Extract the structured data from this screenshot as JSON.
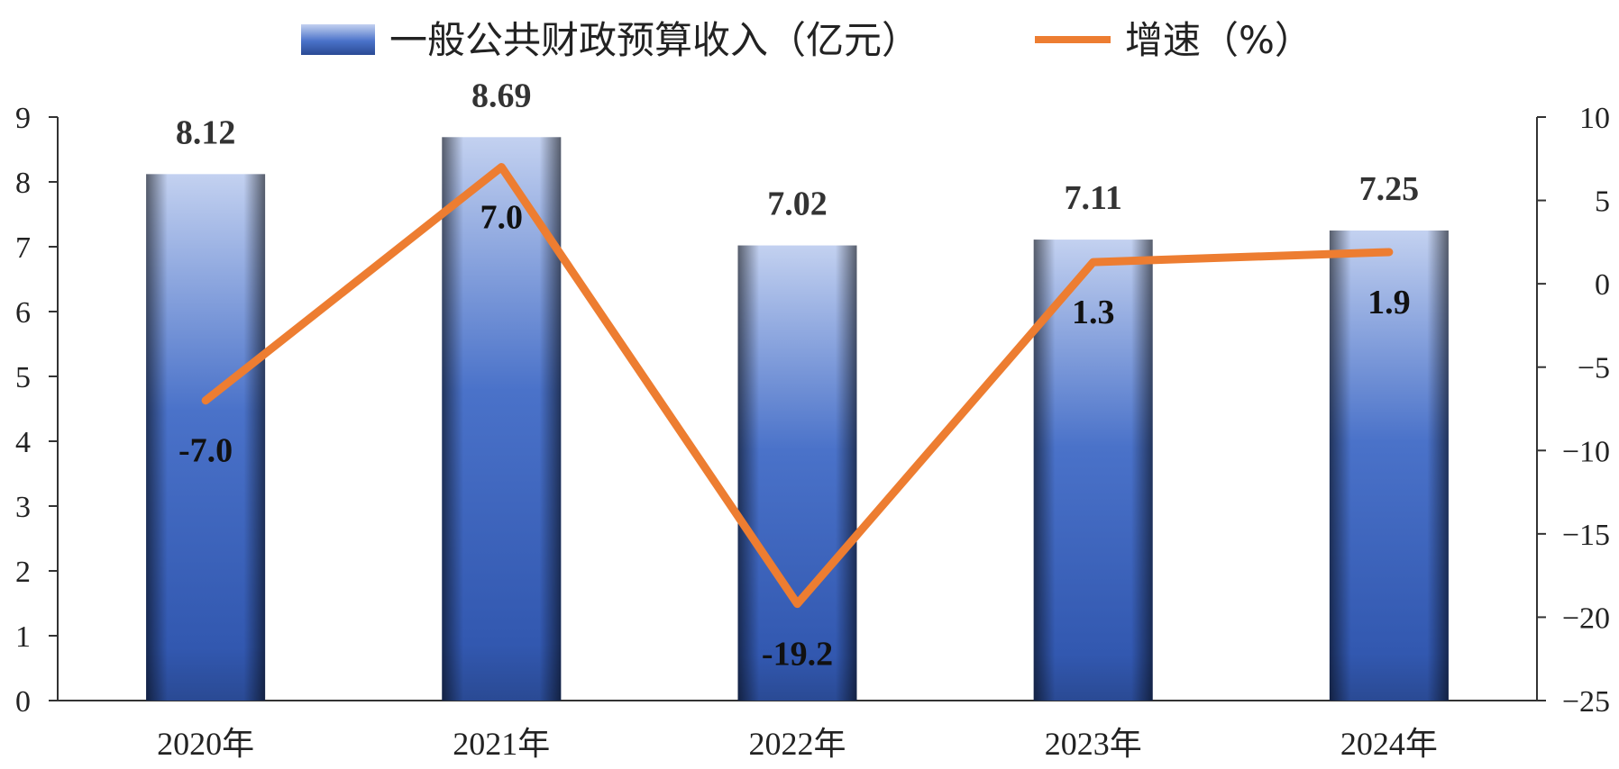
{
  "chart_data": {
    "type": "bar",
    "categories": [
      "2020年",
      "2021年",
      "2022年",
      "2023年",
      "2024年"
    ],
    "series": [
      {
        "name": "一般公共财政预算收入（亿元）",
        "type": "bar",
        "axis": "left",
        "values": [
          8.12,
          8.69,
          7.02,
          7.11,
          7.25
        ],
        "labels": [
          "8.12",
          "8.69",
          "7.02",
          "7.11",
          "7.25"
        ],
        "color": "#3a5fb8"
      },
      {
        "name": "增速（%）",
        "type": "line",
        "axis": "right",
        "values": [
          -7.0,
          7.0,
          -19.2,
          1.3,
          1.9
        ],
        "labels": [
          "-7.0",
          "7.0",
          "-19.2",
          "1.3",
          "1.9"
        ],
        "color": "#ed7d31"
      }
    ],
    "y_left": {
      "min": 0,
      "max": 9,
      "ticks": [
        "0",
        "1",
        "2",
        "3",
        "4",
        "5",
        "6",
        "7",
        "8",
        "9"
      ]
    },
    "y_right": {
      "min": -25,
      "max": 10,
      "ticks": [
        "−25",
        "−20",
        "−15",
        "−10",
        "−5",
        "0",
        "5",
        "10"
      ]
    },
    "legend": {
      "position": "top"
    },
    "grid": false
  }
}
